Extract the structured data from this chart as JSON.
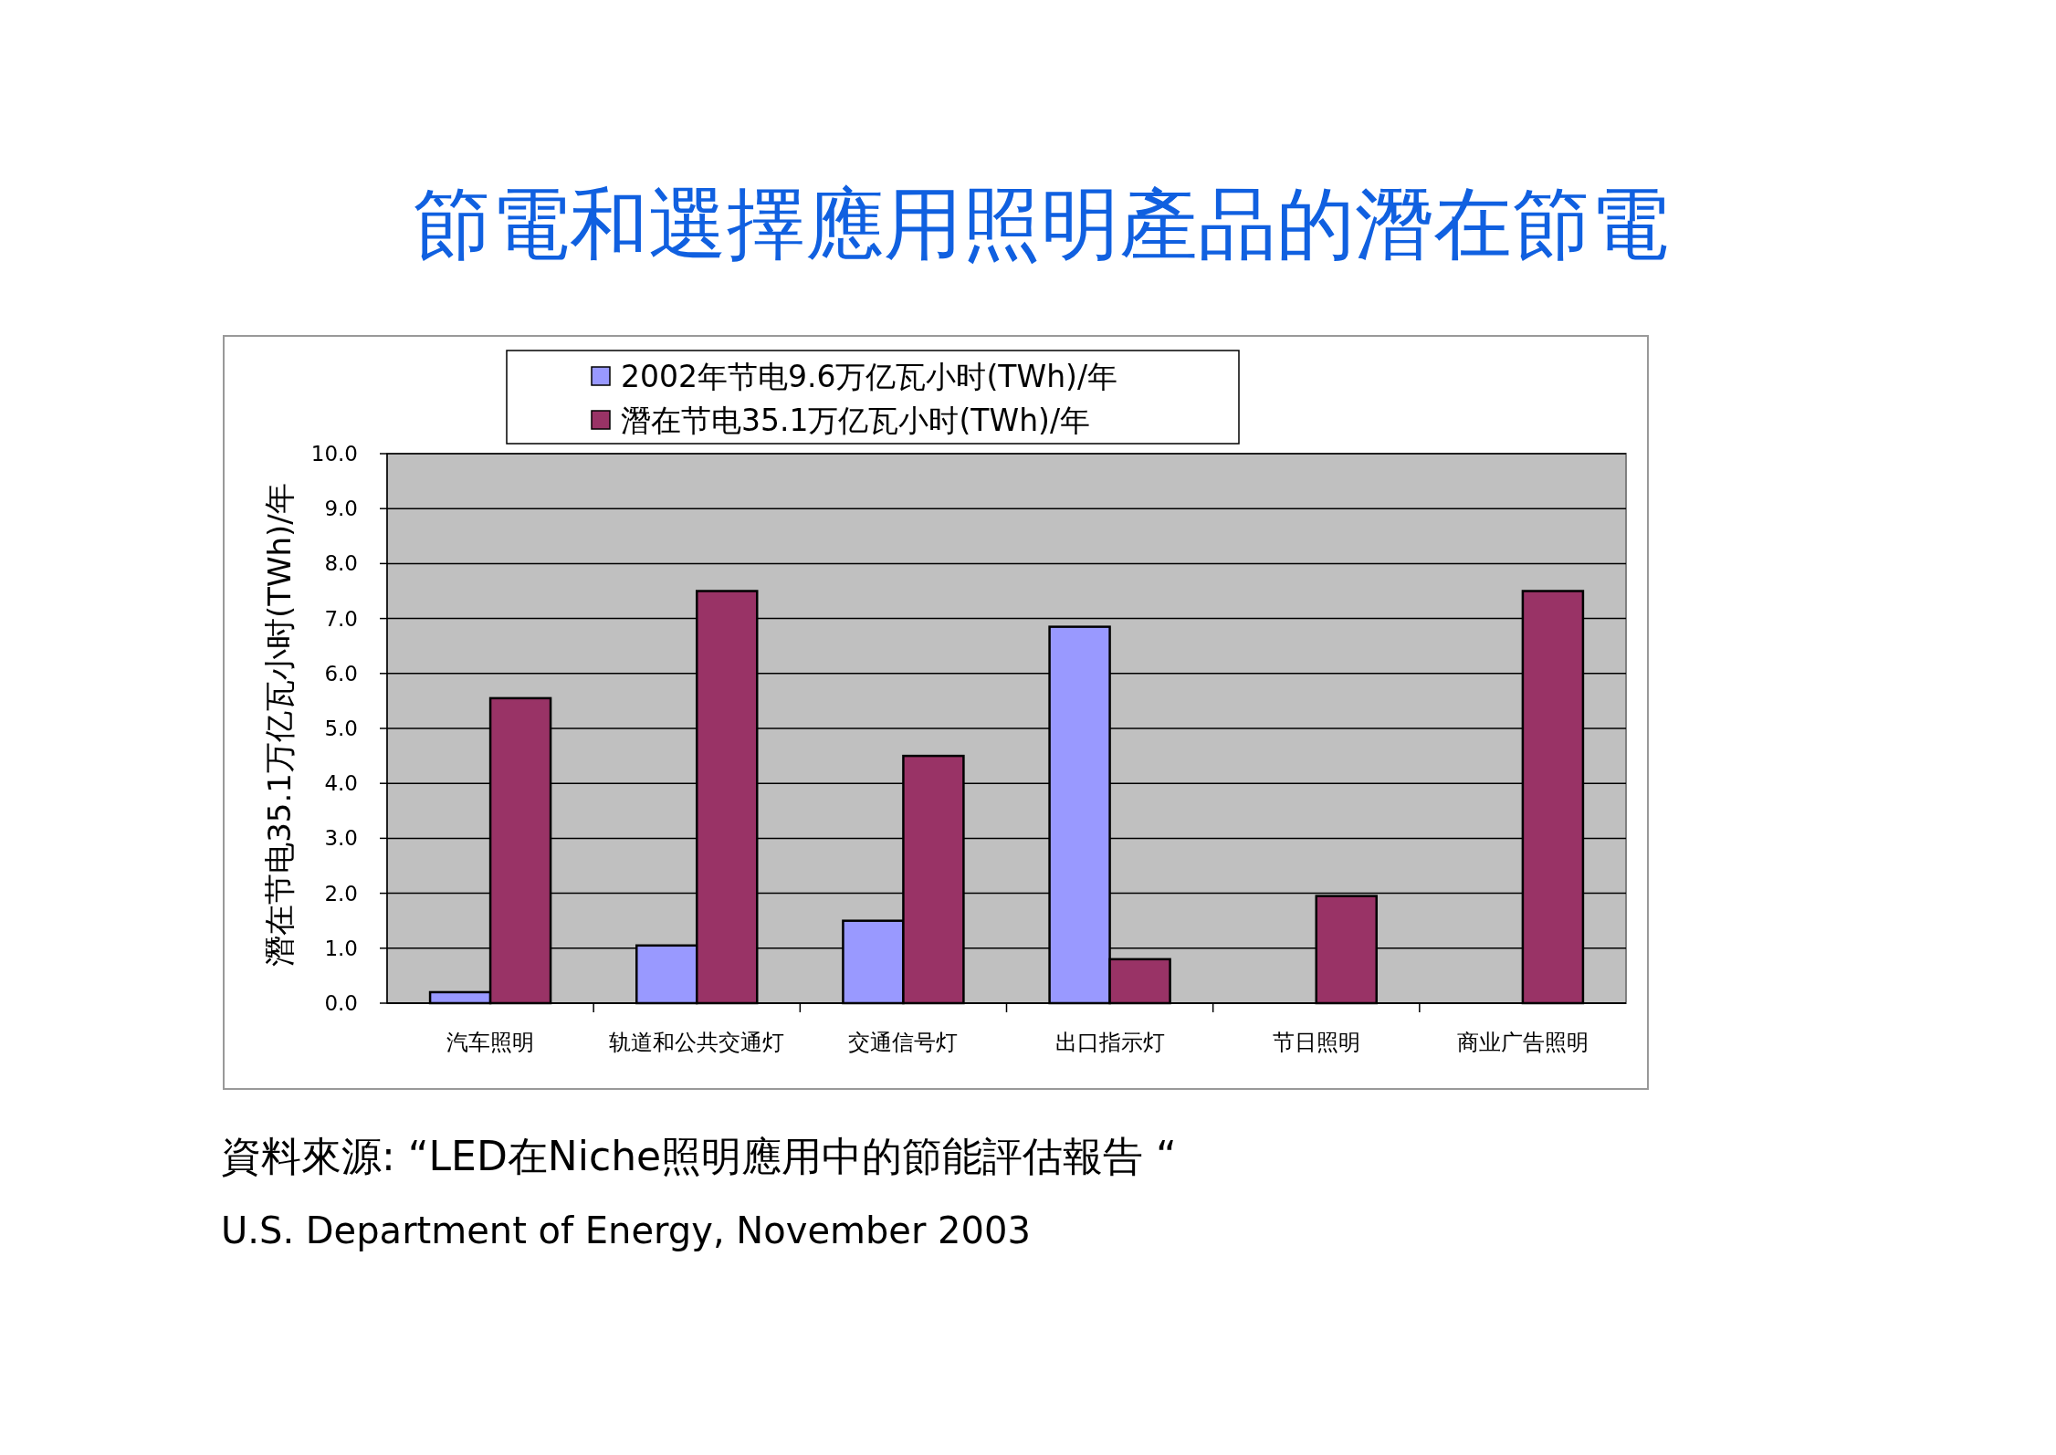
{
  "chart_data": {
    "type": "bar",
    "title": "節電和選擇應用照明產品的潛在節電",
    "ylabel": "潛在节电35.1万亿瓦小时(TWh)/年",
    "categories": [
      "汽车照明",
      "轨道和公共交通灯",
      "交通信号灯",
      "出口指示灯",
      "节日照明",
      "商业广告照明"
    ],
    "series": [
      {
        "name": "2002年节电9.6万亿瓦小时(TWh)/年",
        "color": "#9999ff",
        "values": [
          0.2,
          1.05,
          1.5,
          6.85,
          null,
          null
        ]
      },
      {
        "name": "潛在节电35.1万亿瓦小时(TWh)/年",
        "color": "#993366",
        "values": [
          5.55,
          7.5,
          4.5,
          0.8,
          1.95,
          7.5
        ]
      }
    ],
    "ylim": [
      0,
      10
    ],
    "yticks": [
      {
        "value": 0,
        "label": "0.0"
      },
      {
        "value": 1,
        "label": "1.0"
      },
      {
        "value": 2,
        "label": "2.0"
      },
      {
        "value": 3,
        "label": "3.0"
      },
      {
        "value": 4,
        "label": "4.0"
      },
      {
        "value": 5,
        "label": "5.0"
      },
      {
        "value": 6,
        "label": "6.0"
      },
      {
        "value": 7,
        "label": "7.0"
      },
      {
        "value": 8,
        "label": "8.0"
      },
      {
        "value": 9,
        "label": "9.0"
      },
      {
        "value": 10,
        "label": "10.0"
      }
    ],
    "grid": "y",
    "legend": "top",
    "annotations": [
      "資料來源: “LED在Niche照明應用中的節能評估報告 “",
      "U.S. Department of Energy, November 2003"
    ]
  }
}
